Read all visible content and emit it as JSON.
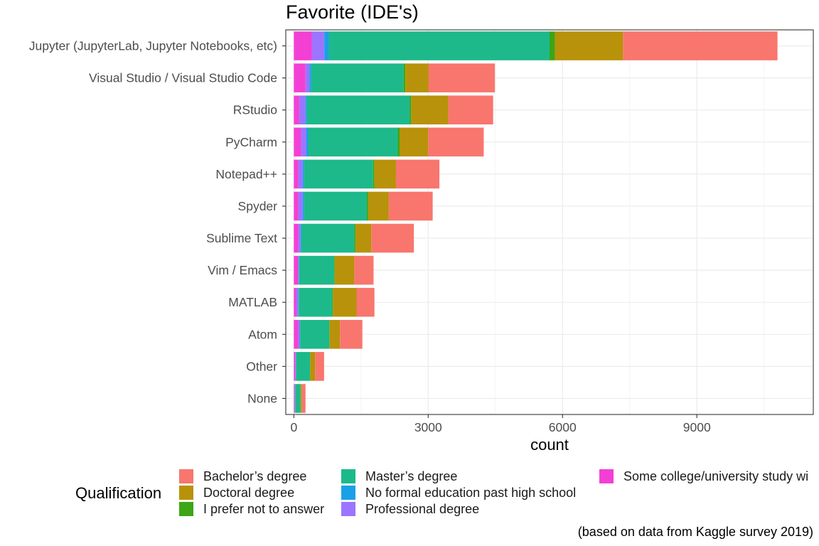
{
  "chart_data": {
    "type": "bar",
    "orientation": "horizontal",
    "stacked": true,
    "title": "Favorite (IDE's)",
    "xlabel": "count",
    "ylabel": "",
    "xlim": [
      -180,
      11600
    ],
    "xticks": [
      0,
      3000,
      6000,
      9000
    ],
    "xtick_labels": [
      "0",
      "3000",
      "6000",
      "9000"
    ],
    "grid": true,
    "legend_position": "bottom",
    "legend_title": "Qualification",
    "caption": "(based on data from Kaggle survey 2019)",
    "categories": [
      "Jupyter (JupyterLab, Jupyter Notebooks, etc)",
      "Visual Studio / Visual Studio Code",
      "RStudio",
      "PyCharm",
      "Notepad++",
      "Spyder",
      "Sublime Text",
      "Vim / Emacs",
      "MATLAB",
      "Atom",
      "Other",
      "None"
    ],
    "stack_order": [
      "Some college/university study wi",
      "Professional degree",
      "No formal education past high school",
      "Master’s degree",
      "I prefer not to answer",
      "Doctoral degree",
      "Bachelor’s degree"
    ],
    "series": [
      {
        "name": "Bachelor’s degree",
        "color": "#F8766D",
        "values": [
          3450,
          1480,
          1000,
          1240,
          970,
          980,
          950,
          430,
          400,
          500,
          200,
          80
        ]
      },
      {
        "name": "Doctoral degree",
        "color": "#B79F00",
        "values": [
          1520,
          520,
          830,
          640,
          480,
          460,
          350,
          440,
          530,
          230,
          110,
          25
        ]
      },
      {
        "name": "I prefer not to answer",
        "color": "#00BA38",
        "values": [
          120,
          40,
          30,
          40,
          30,
          30,
          30,
          10,
          10,
          10,
          5,
          5
        ]
      },
      {
        "name": "Master’s degree",
        "color": "#00BFC4",
        "values": [
          4930,
          2060,
          2300,
          2000,
          1540,
          1400,
          1180,
          780,
          750,
          650,
          310,
          120
        ]
      },
      {
        "name": "No formal education past high school",
        "color": "#619CFF",
        "values": [
          100,
          40,
          30,
          40,
          30,
          30,
          20,
          10,
          10,
          10,
          5,
          5
        ]
      },
      {
        "name": "Professional degree",
        "color": "#9B75FF",
        "values": [
          280,
          90,
          140,
          120,
          100,
          100,
          50,
          20,
          50,
          30,
          15,
          5
        ]
      },
      {
        "name": "Some college/university study wi",
        "color": "#F43FD4",
        "values": [
          400,
          260,
          120,
          160,
          100,
          100,
          100,
          90,
          50,
          100,
          30,
          20
        ]
      }
    ]
  },
  "legend": {
    "title": "Qualification",
    "items": [
      {
        "label": "Bachelor’s degree",
        "color": "#F8766D"
      },
      {
        "label": "Doctoral degree",
        "color": "#B79F00"
      },
      {
        "label": "I prefer not to answer",
        "color": "#00BA38"
      },
      {
        "label": "Master’s degree",
        "color": "#1DB98A"
      },
      {
        "label": "No formal education past high school",
        "color": "#1AA0E6"
      },
      {
        "label": "Professional degree",
        "color": "#9B75FF"
      },
      {
        "label": "Some college/university study wi",
        "color": "#F43FD4"
      }
    ]
  },
  "colors": {
    "bachelor": "#F8766D",
    "doctoral": "#B8920A",
    "prefer_not": "#3DA516",
    "master": "#1DB98A",
    "no_formal": "#1AA0E6",
    "professional": "#9B75FF",
    "some_college": "#F43FD4",
    "grid": "#EBEBEB",
    "panel_border": "#333333"
  }
}
